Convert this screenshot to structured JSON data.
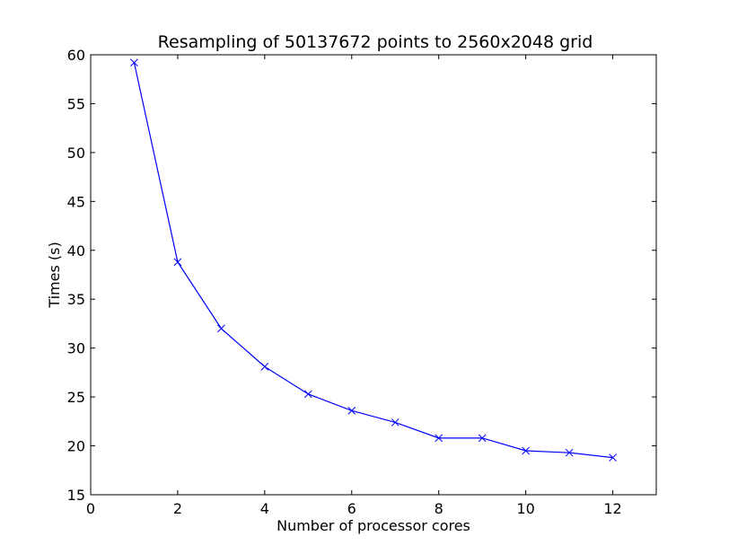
{
  "chart_data": {
    "type": "line",
    "title": "Resampling of 50137672 points to 2560x2048 grid",
    "xlabel": "Number of processor cores",
    "ylabel": "Times (s)",
    "xlim": [
      0,
      13
    ],
    "ylim": [
      15,
      60
    ],
    "xticks": [
      0,
      2,
      4,
      6,
      8,
      10,
      12
    ],
    "yticks": [
      15,
      20,
      25,
      30,
      35,
      40,
      45,
      50,
      55,
      60
    ],
    "grid": false,
    "legend": null,
    "series": [
      {
        "color": "#0000ff",
        "marker": "x",
        "x": [
          1,
          2,
          3,
          4,
          5,
          6,
          7,
          8,
          9,
          10,
          11,
          12
        ],
        "y": [
          59.2,
          38.8,
          32.0,
          28.1,
          25.3,
          23.6,
          22.4,
          20.8,
          20.8,
          19.5,
          19.3,
          18.8
        ]
      }
    ]
  }
}
